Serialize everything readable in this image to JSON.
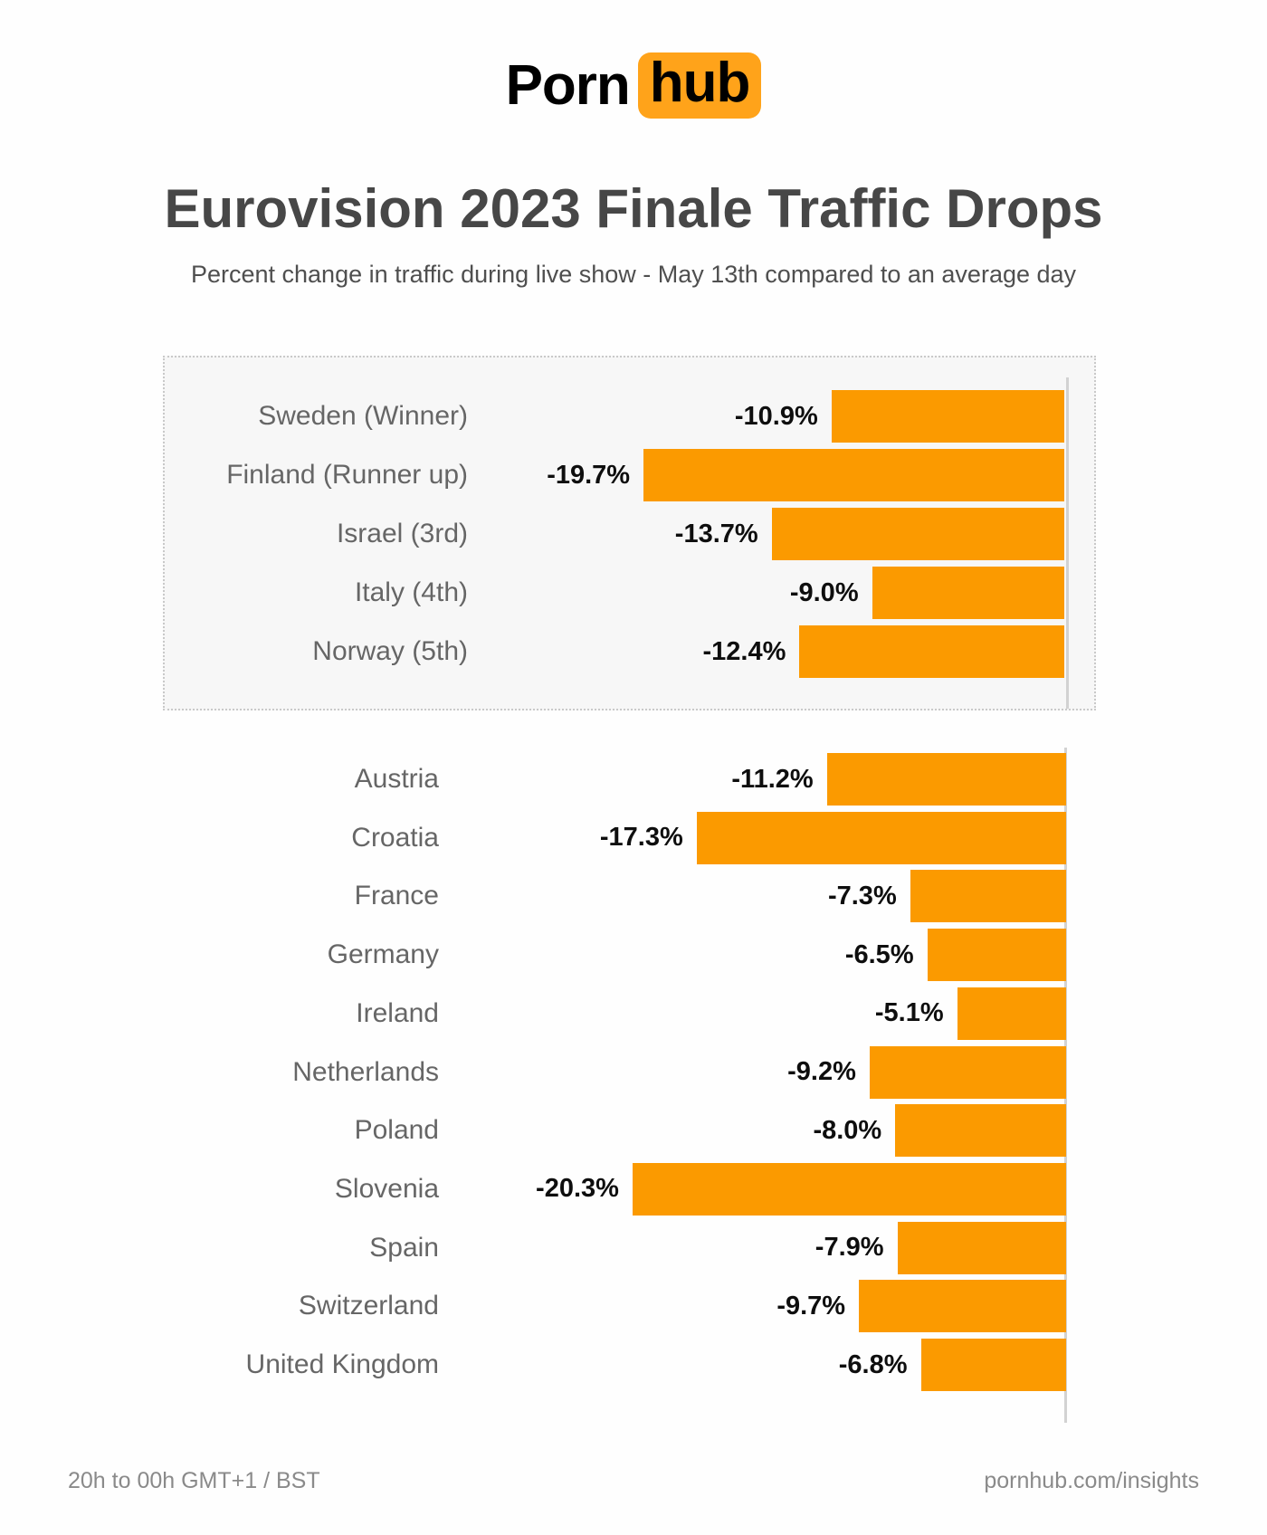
{
  "logo": {
    "part1": "Porn",
    "part2": "hub",
    "badge_color": "#ffa31a"
  },
  "footer": {
    "left": "20h to 00h GMT+1 / BST",
    "right": "pornhub.com/insights"
  },
  "colors": {
    "bar": "#fb9a00",
    "logo_badge": "#ffa31a",
    "title_text": "#474747",
    "label_text": "#666666",
    "value_text": "#0e0e0e",
    "box_background": "#f7f7f7",
    "box_border": "#c9c9c9",
    "axis_line": "#d2d2d2",
    "footer_text": "#8a8a8a"
  },
  "chart_data": {
    "type": "bar",
    "orientation": "horizontal",
    "direction": "bars-extend-left-from-zero-baseline",
    "title": "Eurovision 2023 Finale Traffic Drops",
    "subtitle": "Percent change in traffic during live show - May 13th compared to an average day",
    "unit": "%",
    "xlim": [
      -22.6,
      0
    ],
    "grid": false,
    "legend": "none",
    "bar_color": "#fb9a00",
    "groups": {
      "top5": {
        "categories": [
          "Sweden (Winner)",
          "Finland (Runner up)",
          "Israel (3rd)",
          "Italy (4th)",
          "Norway (5th)"
        ],
        "values": [
          -10.9,
          -19.7,
          -13.7,
          -9.0,
          -12.4
        ],
        "display": [
          "-10.9%",
          "-19.7%",
          "-13.7%",
          "-9.0%",
          "-12.4%"
        ]
      },
      "countries": {
        "categories": [
          "Austria",
          "Croatia",
          "France",
          "Germany",
          "Ireland",
          "Netherlands",
          "Poland",
          "Slovenia",
          "Spain",
          "Switzerland",
          "United Kingdom"
        ],
        "values": [
          -11.2,
          -17.3,
          -7.3,
          -6.5,
          -5.1,
          -9.2,
          -8.0,
          -20.3,
          -7.9,
          -9.7,
          -6.8
        ],
        "display": [
          "-11.2%",
          "-17.3%",
          "-7.3%",
          "-6.5%",
          "-5.1%",
          "-9.2%",
          "-8.0%",
          "-20.3%",
          "-7.9%",
          "-9.7%",
          "-6.8%"
        ]
      }
    }
  }
}
